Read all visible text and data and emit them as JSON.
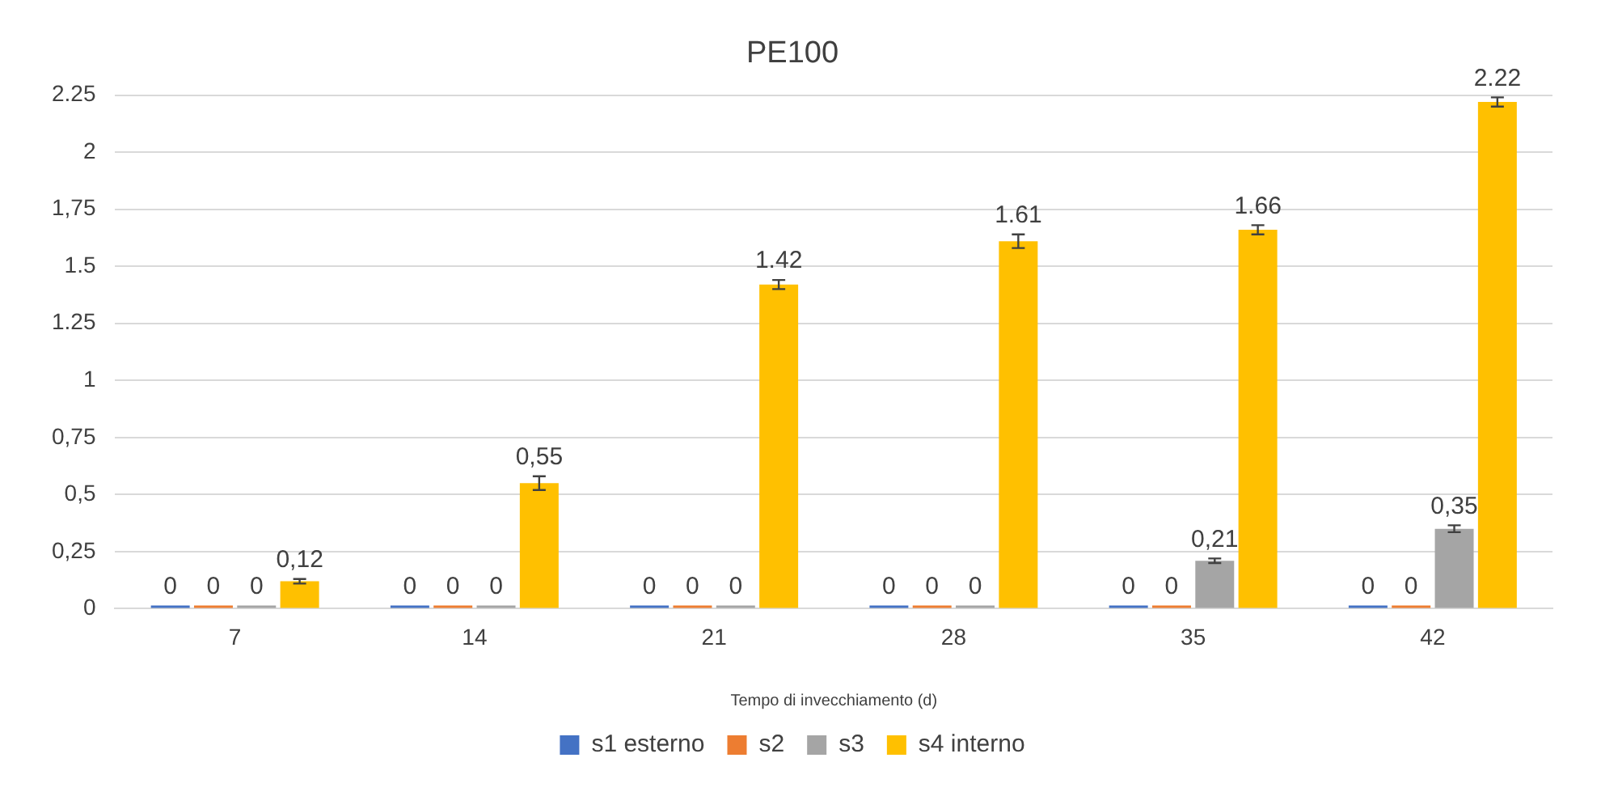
{
  "chart_data": {
    "type": "bar",
    "title": "PE100",
    "xlabel": "Tempo di invecchiamento (d)",
    "categories": [
      "7",
      "14",
      "21",
      "28",
      "35",
      "42"
    ],
    "series": [
      {
        "name": "s1 esterno",
        "color": "#4472c4",
        "values": [
          0,
          0,
          0,
          0,
          0,
          0
        ],
        "value_labels": [
          "0",
          "0",
          "0",
          "0",
          "0",
          "0"
        ]
      },
      {
        "name": "s2",
        "color": "#ed7d31",
        "values": [
          0,
          0,
          0,
          0,
          0,
          0
        ],
        "value_labels": [
          "0",
          "0",
          "0",
          "0",
          "0",
          "0"
        ]
      },
      {
        "name": "s3",
        "color": "#a5a5a5",
        "values": [
          0,
          0,
          0,
          0,
          0.21,
          0.35
        ],
        "value_labels": [
          "0",
          "0",
          "0",
          "0",
          "0,21",
          "0,35"
        ],
        "errors": [
          null,
          null,
          null,
          null,
          0.01,
          0.015
        ]
      },
      {
        "name": "s4 interno",
        "color": "#ffc000",
        "values": [
          0.12,
          0.55,
          1.42,
          1.61,
          1.66,
          2.22
        ],
        "value_labels": [
          "0,12",
          "0,55",
          "1.42",
          "1.61",
          "1.66",
          "2.22"
        ],
        "errors": [
          0.01,
          0.03,
          0.02,
          0.03,
          0.02,
          0.02
        ]
      }
    ],
    "ylim": [
      0,
      2.25
    ],
    "yticks": [
      0,
      {
        "value": 0.25,
        "label": "0,25"
      },
      {
        "value": 0.5,
        "label": "0,5"
      },
      {
        "value": 0.75,
        "label": "0,75"
      },
      1,
      1.25,
      1.5,
      {
        "value": 1.75,
        "label": "1,75"
      },
      2,
      2.25
    ],
    "grid": "y",
    "legend": "bottom"
  }
}
